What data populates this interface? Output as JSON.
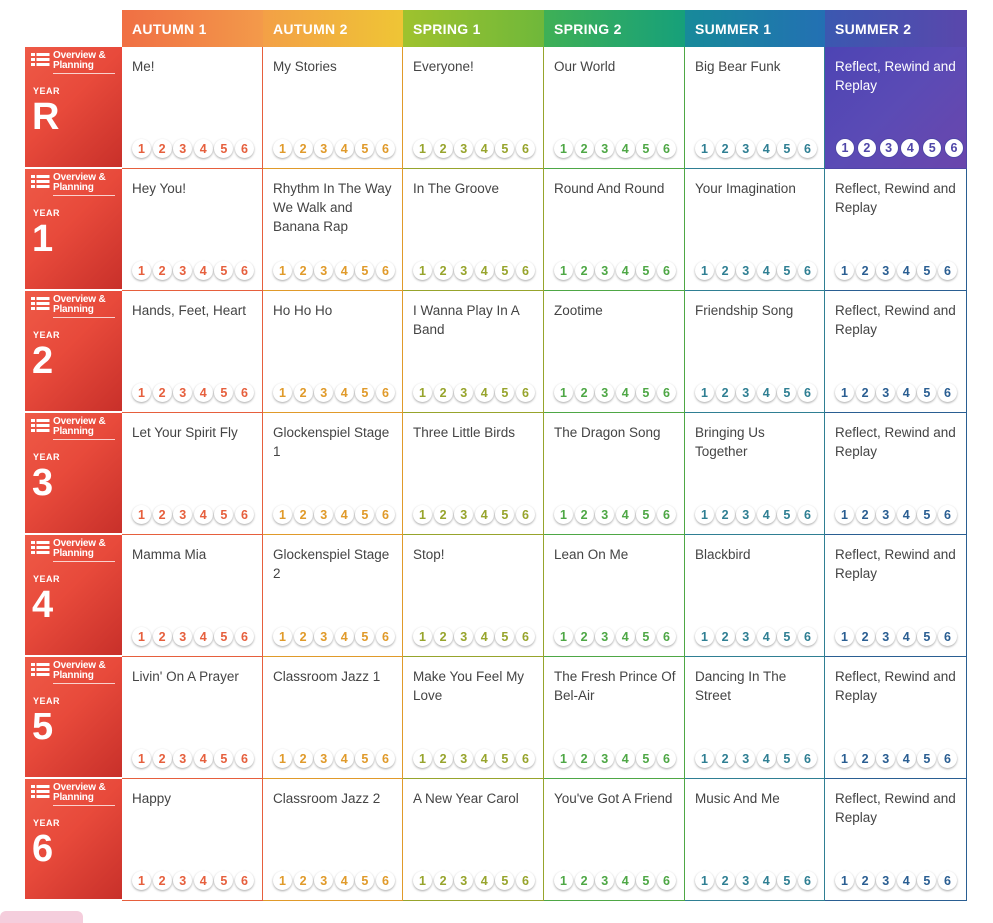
{
  "terms": [
    "AUTUMN 1",
    "AUTUMN 2",
    "SPRING 1",
    "SPRING 2",
    "SUMMER 1",
    "SUMMER 2"
  ],
  "colors": [
    "#e65f3d",
    "#e09a2a",
    "#97a42c",
    "#4ea745",
    "#2f7f93",
    "#2a5e92"
  ],
  "overview_label": "Overview & Planning",
  "year_word": "YEAR",
  "lessons": [
    "1",
    "2",
    "3",
    "4",
    "5",
    "6"
  ],
  "years": [
    {
      "year": "R",
      "units": [
        "Me!",
        "My Stories",
        "Everyone!",
        "Our World",
        "Big Bear Funk",
        "Reflect, Rewind and Replay"
      ]
    },
    {
      "year": "1",
      "units": [
        "Hey You!",
        "Rhythm In The Way We Walk and Banana Rap",
        "In The Groove",
        "Round And Round",
        "Your Imagination",
        "Reflect, Rewind and Replay"
      ]
    },
    {
      "year": "2",
      "units": [
        "Hands, Feet, Heart",
        "Ho Ho Ho",
        "I Wanna Play In A Band",
        "Zootime",
        "Friendship Song",
        "Reflect, Rewind and Replay"
      ]
    },
    {
      "year": "3",
      "units": [
        "Let Your Spirit Fly",
        "Glockenspiel Stage 1",
        "Three Little Birds",
        "The Dragon Song",
        "Bringing Us Together",
        "Reflect, Rewind and Replay"
      ]
    },
    {
      "year": "4",
      "units": [
        "Mamma Mia",
        "Glockenspiel Stage 2",
        "Stop!",
        "Lean On Me",
        "Blackbird",
        "Reflect, Rewind and Replay"
      ]
    },
    {
      "year": "5",
      "units": [
        "Livin' On A Prayer",
        "Classroom Jazz 1",
        "Make You Feel My Love",
        "The Fresh Prince Of Bel-Air",
        "Dancing In The Street",
        "Reflect, Rewind and Replay"
      ]
    },
    {
      "year": "6",
      "units": [
        "Happy",
        "Classroom Jazz 2",
        "A New Year Carol",
        "You've Got A Friend",
        "Music And Me",
        "Reflect, Rewind and Replay"
      ]
    }
  ]
}
